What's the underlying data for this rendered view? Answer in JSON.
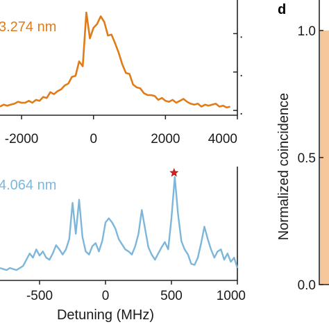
{
  "chart_data": [
    {
      "type": "line",
      "annotation": "3.274 nm",
      "color": "#E07B16",
      "xlim": [
        -2600,
        4000
      ],
      "ylim": [
        0.15,
        1.35
      ],
      "x_ticks": [
        -2000,
        0,
        2000,
        4000
      ],
      "x_tick_labels": [
        "-2000",
        "0",
        "2000",
        "4000"
      ],
      "y_ticks": [
        0.2,
        0.6,
        1.0
      ],
      "y_tick_labels": [
        ".",
        ".",
        "."
      ],
      "x": [
        -2600,
        -2500,
        -2400,
        -2300,
        -2200,
        -2100,
        -2000,
        -1900,
        -1800,
        -1700,
        -1600,
        -1500,
        -1400,
        -1300,
        -1200,
        -1100,
        -1000,
        -900,
        -800,
        -700,
        -600,
        -500,
        -400,
        -300,
        -200,
        -100,
        0,
        100,
        200,
        300,
        400,
        500,
        600,
        700,
        800,
        900,
        1000,
        1100,
        1200,
        1300,
        1400,
        1500,
        1600,
        1700,
        1800,
        1900,
        2000,
        2100,
        2200,
        2300,
        2400,
        2500,
        2600,
        2700,
        2800,
        2900,
        3000,
        3100,
        3200,
        3300,
        3400,
        3500,
        3600,
        3700,
        3800
      ],
      "y": [
        0.24,
        0.26,
        0.25,
        0.26,
        0.27,
        0.29,
        0.28,
        0.28,
        0.3,
        0.28,
        0.31,
        0.3,
        0.34,
        0.33,
        0.39,
        0.37,
        0.4,
        0.42,
        0.46,
        0.48,
        0.55,
        0.56,
        0.71,
        0.66,
        1.22,
        0.95,
        1.06,
        1.1,
        1.18,
        1.12,
        0.98,
        0.99,
        0.9,
        0.8,
        0.68,
        0.59,
        0.58,
        0.47,
        0.44,
        0.43,
        0.38,
        0.36,
        0.36,
        0.35,
        0.31,
        0.33,
        0.3,
        0.29,
        0.31,
        0.28,
        0.3,
        0.32,
        0.29,
        0.27,
        0.26,
        0.27,
        0.24,
        0.26,
        0.25,
        0.26,
        0.27,
        0.24,
        0.25,
        0.23,
        0.24
      ]
    },
    {
      "type": "line",
      "annotation": "4.064 nm",
      "color": "#7DB6DB",
      "xlabel": "Detuning (MHz)",
      "xlim": [
        -800,
        1000
      ],
      "ylim": [
        0,
        1.1
      ],
      "x_ticks": [
        -500,
        0,
        500,
        1000
      ],
      "x_tick_labels": [
        "-500",
        "0",
        "500",
        "1000"
      ],
      "marker": {
        "x": 520,
        "y": 1.02,
        "color": "#E02020"
      },
      "x": [
        -800,
        -775,
        -750,
        -725,
        -700,
        -675,
        -650,
        -625,
        -600,
        -575,
        -550,
        -525,
        -500,
        -475,
        -450,
        -425,
        -400,
        -375,
        -350,
        -325,
        -300,
        -275,
        -250,
        -225,
        -200,
        -175,
        -150,
        -125,
        -100,
        -75,
        -50,
        -25,
        0,
        25,
        50,
        75,
        100,
        125,
        150,
        175,
        200,
        225,
        250,
        275,
        300,
        325,
        350,
        375,
        400,
        425,
        450,
        475,
        500,
        525,
        550,
        575,
        600,
        625,
        650,
        675,
        700,
        725,
        750,
        775,
        800,
        825,
        850,
        875,
        900,
        925,
        950,
        975,
        1000
      ],
      "y": [
        0.12,
        0.11,
        0.1,
        0.12,
        0.11,
        0.1,
        0.12,
        0.14,
        0.2,
        0.26,
        0.22,
        0.3,
        0.24,
        0.28,
        0.22,
        0.2,
        0.26,
        0.34,
        0.3,
        0.25,
        0.3,
        0.4,
        0.75,
        0.45,
        0.78,
        0.42,
        0.28,
        0.25,
        0.33,
        0.36,
        0.28,
        0.38,
        0.56,
        0.6,
        0.56,
        0.5,
        0.4,
        0.35,
        0.3,
        0.28,
        0.25,
        0.33,
        0.45,
        0.68,
        0.5,
        0.32,
        0.25,
        0.2,
        0.26,
        0.32,
        0.37,
        0.3,
        0.6,
        1.0,
        0.64,
        0.38,
        0.3,
        0.25,
        0.16,
        0.15,
        0.22,
        0.36,
        0.52,
        0.4,
        0.3,
        0.22,
        0.28,
        0.3,
        0.2,
        0.26,
        0.18,
        0.22,
        0.12
      ]
    },
    {
      "type": "bar",
      "panel_label": "d",
      "ylabel": "Normalized coincidence",
      "ylim": [
        0,
        1.12
      ],
      "y_ticks": [
        0.0,
        0.5,
        1.0
      ],
      "y_tick_labels": [
        "0.0",
        "0.5",
        "1.0"
      ],
      "bar_color": "#F5C79B",
      "values": [
        1.0
      ]
    }
  ]
}
